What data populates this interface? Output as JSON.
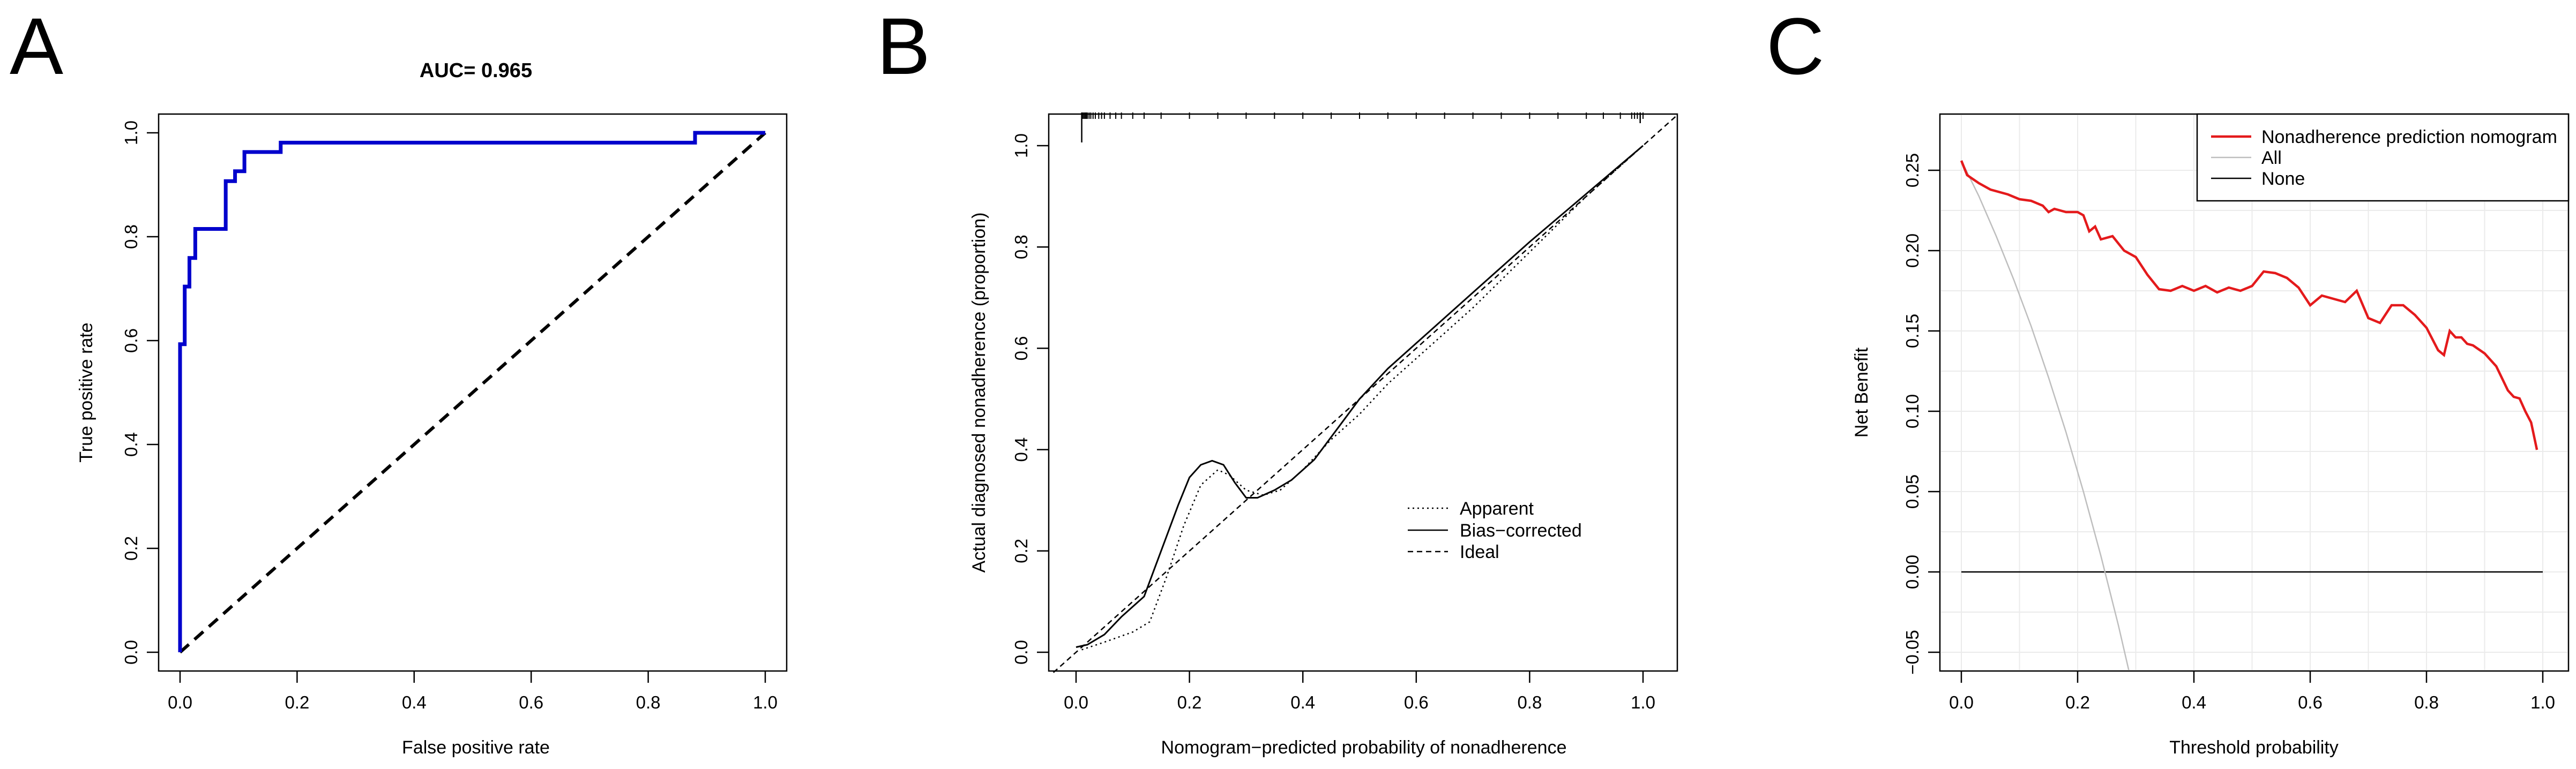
{
  "figure": {
    "panels": [
      "A",
      "B",
      "C"
    ]
  },
  "chart_data": [
    {
      "panel": "A",
      "type": "line",
      "title": "AUC= 0.965",
      "xlabel": "False positive rate",
      "ylabel": "True positive rate",
      "xlim": [
        0,
        1
      ],
      "ylim": [
        0,
        1
      ],
      "xticks": [
        "0.0",
        "0.2",
        "0.4",
        "0.6",
        "0.8",
        "1.0"
      ],
      "yticks": [
        "0.0",
        "0.2",
        "0.4",
        "0.6",
        "0.8",
        "1.0"
      ],
      "grid": false,
      "colors": {
        "roc": "#0000CC",
        "reference": "#000000"
      },
      "series": [
        {
          "style": "solid",
          "x": [
            0,
            0,
            0.008,
            0.008,
            0.016,
            0.016,
            0.026,
            0.026,
            0.078,
            0.078,
            0.094,
            0.094,
            0.11,
            0.11,
            0.172,
            0.172,
            0.88,
            0.88,
            1.0
          ],
          "y": [
            0,
            0.593,
            0.593,
            0.704,
            0.704,
            0.759,
            0.759,
            0.815,
            0.815,
            0.907,
            0.907,
            0.926,
            0.926,
            0.963,
            0.963,
            0.981,
            0.981,
            1.0,
            1.0
          ]
        },
        {
          "style": "dashed",
          "x": [
            0,
            1
          ],
          "y": [
            0,
            1
          ]
        }
      ]
    },
    {
      "panel": "B",
      "type": "line",
      "title": "",
      "xlabel": "Nomogram−predicted probability of nonadherence",
      "ylabel": "Actual diagnosed nonadherence (proportion)",
      "xlim": [
        0,
        1
      ],
      "ylim": [
        0,
        1
      ],
      "xticks": [
        "0.0",
        "0.2",
        "0.4",
        "0.6",
        "0.8",
        "1.0"
      ],
      "yticks": [
        "0.0",
        "0.2",
        "0.4",
        "0.6",
        "0.8",
        "1.0"
      ],
      "grid": false,
      "legend": {
        "position": "bottom-right",
        "entries": [
          "Apparent",
          "Bias−corrected",
          "Ideal"
        ]
      },
      "series": [
        {
          "name": "Apparent",
          "style": "dotted",
          "x": [
            0.01,
            0.05,
            0.1,
            0.13,
            0.16,
            0.19,
            0.22,
            0.25,
            0.27,
            0.3,
            0.33,
            0.36,
            0.4,
            0.45,
            0.5,
            0.55,
            0.6,
            0.7,
            0.8,
            0.9,
            1.0
          ],
          "y": [
            0.005,
            0.02,
            0.04,
            0.06,
            0.15,
            0.25,
            0.33,
            0.36,
            0.35,
            0.32,
            0.31,
            0.32,
            0.36,
            0.42,
            0.47,
            0.53,
            0.58,
            0.68,
            0.79,
            0.9,
            1.0
          ]
        },
        {
          "name": "Bias−corrected",
          "style": "solid",
          "x": [
            0.0,
            0.02,
            0.05,
            0.08,
            0.12,
            0.14,
            0.16,
            0.18,
            0.2,
            0.22,
            0.24,
            0.26,
            0.28,
            0.3,
            0.32,
            0.35,
            0.38,
            0.42,
            0.46,
            0.5,
            0.55,
            0.6,
            0.7,
            0.8,
            0.9,
            1.0
          ],
          "y": [
            0.01,
            0.015,
            0.035,
            0.07,
            0.11,
            0.17,
            0.23,
            0.29,
            0.345,
            0.37,
            0.378,
            0.37,
            0.335,
            0.305,
            0.305,
            0.32,
            0.34,
            0.38,
            0.44,
            0.5,
            0.56,
            0.61,
            0.71,
            0.81,
            0.905,
            1.0
          ]
        },
        {
          "name": "Ideal",
          "style": "dashed",
          "x": [
            -0.04,
            1.06
          ],
          "y": [
            -0.04,
            1.06
          ]
        }
      ],
      "rug": [
        0.01,
        0.012,
        0.014,
        0.016,
        0.018,
        0.02,
        0.023,
        0.026,
        0.03,
        0.034,
        0.04,
        0.045,
        0.05,
        0.06,
        0.07,
        0.08,
        0.1,
        0.12,
        0.15,
        0.2,
        0.25,
        0.3,
        0.35,
        0.4,
        0.45,
        0.5,
        0.55,
        0.6,
        0.65,
        0.7,
        0.75,
        0.8,
        0.85,
        0.9,
        0.93,
        0.96,
        0.98,
        0.985,
        0.99,
        0.995,
        1.0
      ]
    },
    {
      "panel": "C",
      "type": "line",
      "title": "",
      "xlabel": "Threshold probability",
      "ylabel": "Net Benefit",
      "xlim": [
        0,
        1
      ],
      "ylim": [
        -0.05,
        0.25
      ],
      "xticks": [
        "0.0",
        "0.2",
        "0.4",
        "0.6",
        "0.8",
        "1.0"
      ],
      "yticks": [
        "−0.05",
        "0.00",
        "0.05",
        "0.10",
        "0.15",
        "0.20",
        "0.25"
      ],
      "grid": true,
      "legend": {
        "position": "top-right",
        "entries": [
          "Nonadherence prediction nomogram",
          "All",
          "None"
        ]
      },
      "series": [
        {
          "name": "Nonadherence prediction nomogram",
          "color": "#E41A1C",
          "x": [
            0.0,
            0.01,
            0.03,
            0.05,
            0.08,
            0.1,
            0.12,
            0.14,
            0.15,
            0.16,
            0.18,
            0.2,
            0.21,
            0.22,
            0.23,
            0.24,
            0.26,
            0.28,
            0.3,
            0.32,
            0.34,
            0.36,
            0.38,
            0.4,
            0.42,
            0.44,
            0.46,
            0.48,
            0.5,
            0.52,
            0.54,
            0.56,
            0.58,
            0.6,
            0.62,
            0.64,
            0.66,
            0.68,
            0.7,
            0.72,
            0.74,
            0.76,
            0.78,
            0.8,
            0.82,
            0.83,
            0.84,
            0.85,
            0.86,
            0.87,
            0.88,
            0.9,
            0.92,
            0.94,
            0.95,
            0.96,
            0.97,
            0.98,
            0.99
          ],
          "y": [
            0.256,
            0.247,
            0.242,
            0.238,
            0.235,
            0.232,
            0.231,
            0.228,
            0.224,
            0.226,
            0.224,
            0.224,
            0.222,
            0.212,
            0.215,
            0.207,
            0.209,
            0.2,
            0.196,
            0.185,
            0.176,
            0.175,
            0.178,
            0.175,
            0.178,
            0.174,
            0.177,
            0.175,
            0.178,
            0.187,
            0.186,
            0.183,
            0.177,
            0.166,
            0.172,
            0.17,
            0.168,
            0.175,
            0.158,
            0.155,
            0.166,
            0.166,
            0.16,
            0.152,
            0.138,
            0.135,
            0.15,
            0.146,
            0.146,
            0.142,
            0.141,
            0.136,
            0.128,
            0.113,
            0.109,
            0.108,
            0.1,
            0.093,
            0.076
          ]
        },
        {
          "name": "All",
          "color": "#BEBEBE",
          "x": [
            0.0,
            0.03,
            0.06,
            0.09,
            0.12,
            0.15,
            0.18,
            0.21,
            0.24,
            0.27,
            0.3
          ],
          "y": [
            0.256,
            0.234,
            0.209,
            0.182,
            0.153,
            0.121,
            0.087,
            0.05,
            0.01,
            -0.033,
            -0.08
          ]
        },
        {
          "name": "None",
          "color": "#000000",
          "x": [
            0.0,
            1.0
          ],
          "y": [
            0.0,
            0.0
          ]
        }
      ]
    }
  ]
}
